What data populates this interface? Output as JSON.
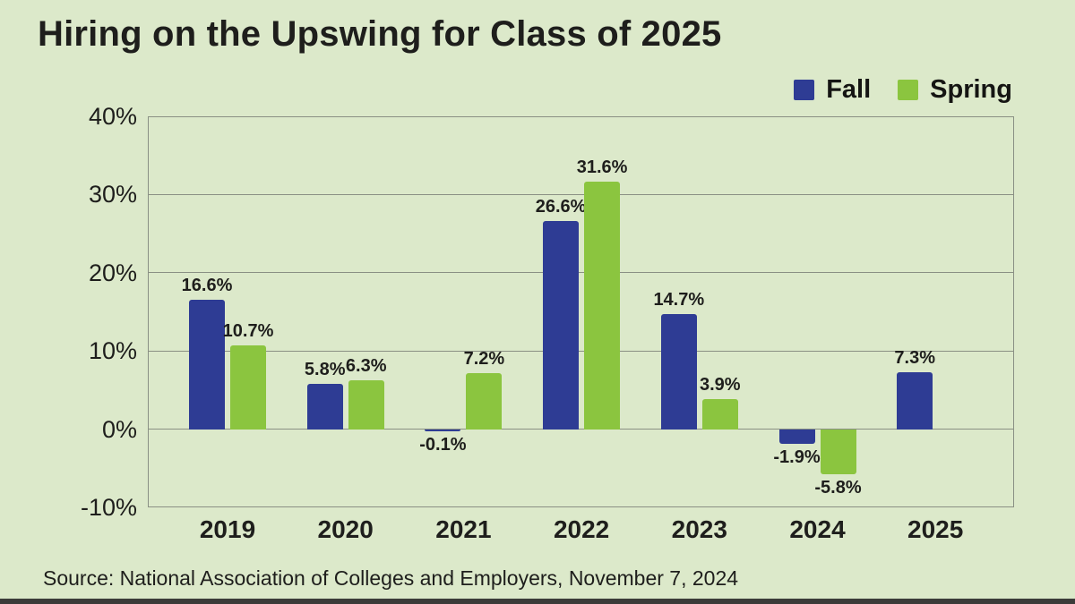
{
  "page": {
    "source": "Source: National Association of Colleges and Employers, November 7, 2024"
  },
  "colors": {
    "background": "#dce9ca",
    "fall_blue": "#2e3c94",
    "spring_green": "#8bc53f",
    "grid": "#8a9084",
    "text": "#1e1e1c",
    "bottom_band": "#3b3b39"
  },
  "chart_data": {
    "type": "bar",
    "title": "Hiring on the Upswing for Class of 2025",
    "categories": [
      "2019",
      "2020",
      "2021",
      "2022",
      "2023",
      "2024",
      "2025"
    ],
    "series": [
      {
        "name": "Fall",
        "color": "#2e3c94",
        "values": [
          16.6,
          5.8,
          -0.1,
          26.6,
          14.7,
          -1.9,
          7.3
        ],
        "labels": [
          "16.6%",
          "5.8%",
          "-0.1%",
          "26.6%",
          "14.7%",
          "-1.9%",
          "7.3%"
        ]
      },
      {
        "name": "Spring",
        "color": "#8bc53f",
        "values": [
          10.7,
          6.3,
          7.2,
          31.6,
          3.9,
          -5.8,
          null
        ],
        "labels": [
          "10.7%",
          "6.3%",
          "7.2%",
          "31.6%",
          "3.9%",
          "-5.8%",
          null
        ]
      }
    ],
    "ylim": [
      -10,
      40
    ],
    "yticks": [
      "40%",
      "30%",
      "20%",
      "10%",
      "0%",
      "-10%"
    ],
    "grid": true,
    "legend_position": "top-right",
    "value_labels_shown": true
  }
}
